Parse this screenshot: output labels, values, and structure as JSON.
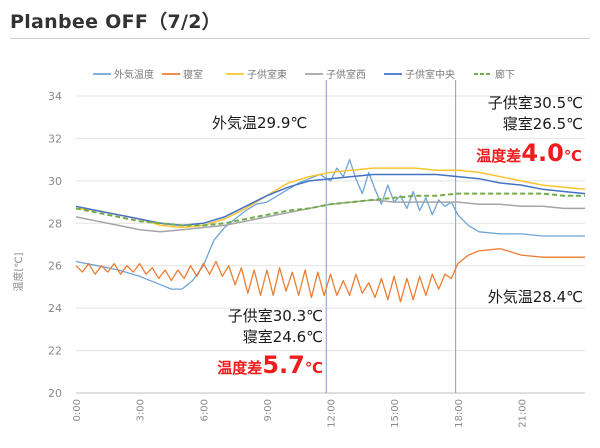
{
  "title": "Planbee OFF（7/2）",
  "chart_data": {
    "type": "line",
    "ylabel": "温度[℃]",
    "ylim": [
      20,
      34
    ],
    "yticks": [
      "20",
      "22",
      "24",
      "26",
      "28",
      "30",
      "32",
      "34"
    ],
    "xlim": [
      0,
      24
    ],
    "xticks": [
      {
        "v": 0,
        "label": "0:00"
      },
      {
        "v": 3,
        "label": "3:00"
      },
      {
        "v": 6,
        "label": "6:00"
      },
      {
        "v": 9,
        "label": "9:00"
      },
      {
        "v": 12,
        "label": "12:00"
      },
      {
        "v": 15,
        "label": "15:00"
      },
      {
        "v": 18,
        "label": "18:00"
      },
      {
        "v": 21,
        "label": "21:00"
      }
    ],
    "vlines": [
      11.8,
      17.9
    ],
    "legend_position": "top",
    "series": [
      {
        "name": "外気温度",
        "color": "#6ea4d8",
        "dash": false,
        "width": 1.3,
        "x": [
          0,
          1,
          2,
          3,
          4,
          4.5,
          5,
          5.5,
          6,
          6.5,
          7,
          7.5,
          8,
          8.5,
          9,
          9.5,
          10,
          10.5,
          11,
          11.5,
          12,
          12.3,
          12.6,
          12.9,
          13.2,
          13.5,
          13.8,
          14.1,
          14.4,
          14.7,
          15,
          15.3,
          15.6,
          15.9,
          16.2,
          16.5,
          16.8,
          17.1,
          17.4,
          17.7,
          18,
          18.5,
          19,
          20,
          21,
          22,
          23,
          24
        ],
        "y": [
          26.2,
          26.0,
          25.8,
          25.5,
          25.1,
          24.9,
          24.9,
          25.3,
          26.0,
          27.2,
          27.8,
          28.2,
          28.6,
          28.9,
          29.0,
          29.3,
          29.6,
          29.9,
          30.1,
          30.3,
          30.0,
          30.6,
          30.2,
          31.0,
          30.1,
          29.4,
          30.4,
          29.6,
          28.9,
          29.8,
          29.0,
          29.3,
          28.7,
          29.5,
          28.6,
          29.2,
          28.4,
          29.1,
          28.8,
          29.0,
          28.4,
          27.9,
          27.6,
          27.5,
          27.5,
          27.4,
          27.4,
          27.4
        ]
      },
      {
        "name": "寝室",
        "color": "#ec7d33",
        "dash": false,
        "width": 1.3,
        "x": [
          0,
          0.3,
          0.6,
          0.9,
          1.2,
          1.5,
          1.8,
          2.1,
          2.4,
          2.7,
          3.0,
          3.3,
          3.6,
          3.9,
          4.2,
          4.5,
          4.8,
          5.1,
          5.4,
          5.7,
          6.0,
          6.3,
          6.6,
          6.9,
          7.2,
          7.5,
          7.8,
          8.1,
          8.4,
          8.7,
          9.0,
          9.3,
          9.6,
          9.9,
          10.2,
          10.5,
          10.8,
          11.1,
          11.4,
          11.7,
          12.0,
          12.3,
          12.6,
          12.9,
          13.2,
          13.5,
          13.8,
          14.1,
          14.4,
          14.7,
          15.0,
          15.3,
          15.6,
          15.9,
          16.2,
          16.5,
          16.8,
          17.1,
          17.4,
          17.7,
          18.0,
          18.5,
          19,
          20,
          21,
          22,
          23,
          24
        ],
        "y": [
          26.0,
          25.7,
          26.1,
          25.6,
          26.0,
          25.7,
          26.1,
          25.6,
          26.0,
          25.7,
          26.1,
          25.6,
          25.9,
          25.4,
          25.8,
          25.3,
          25.8,
          25.4,
          26.0,
          25.5,
          26.1,
          25.6,
          26.2,
          25.5,
          26.0,
          25.1,
          25.9,
          24.7,
          25.8,
          24.6,
          25.8,
          24.6,
          25.9,
          24.8,
          25.7,
          24.6,
          25.8,
          24.5,
          25.7,
          24.6,
          25.6,
          24.6,
          25.3,
          24.6,
          25.6,
          24.7,
          25.2,
          24.5,
          25.4,
          24.4,
          25.5,
          24.3,
          25.4,
          24.4,
          25.5,
          24.6,
          25.6,
          24.9,
          25.6,
          25.4,
          26.1,
          26.5,
          26.7,
          26.8,
          26.5,
          26.4,
          26.4,
          26.4
        ]
      },
      {
        "name": "子供室東",
        "color": "#f9c430",
        "dash": false,
        "width": 1.5,
        "x": [
          0,
          1,
          2,
          3,
          4,
          5,
          6,
          7,
          8,
          9,
          10,
          11,
          12,
          13,
          14,
          15,
          16,
          17,
          18,
          19,
          20,
          21,
          22,
          23,
          24
        ],
        "y": [
          28.7,
          28.6,
          28.4,
          28.2,
          27.9,
          27.8,
          27.9,
          28.2,
          28.7,
          29.3,
          29.9,
          30.2,
          30.4,
          30.5,
          30.6,
          30.6,
          30.6,
          30.5,
          30.5,
          30.4,
          30.2,
          30.0,
          29.8,
          29.7,
          29.6
        ]
      },
      {
        "name": "子供室西",
        "color": "#a5a5a5",
        "dash": false,
        "width": 1.5,
        "x": [
          0,
          1,
          2,
          3,
          4,
          5,
          6,
          7,
          8,
          9,
          10,
          11,
          12,
          13,
          14,
          15,
          16,
          17,
          18,
          19,
          20,
          21,
          22,
          23,
          24
        ],
        "y": [
          28.3,
          28.1,
          27.9,
          27.7,
          27.6,
          27.7,
          27.8,
          27.9,
          28.1,
          28.3,
          28.5,
          28.7,
          28.9,
          29.0,
          29.1,
          29.0,
          29.0,
          29.0,
          29.0,
          28.9,
          28.9,
          28.8,
          28.8,
          28.7,
          28.7
        ]
      },
      {
        "name": "子供室中央",
        "color": "#4472c4",
        "dash": false,
        "width": 1.5,
        "x": [
          0,
          1,
          2,
          3,
          4,
          5,
          6,
          7,
          8,
          9,
          10,
          11,
          12,
          13,
          14,
          15,
          16,
          17,
          18,
          19,
          20,
          21,
          22,
          23,
          24
        ],
        "y": [
          28.8,
          28.6,
          28.4,
          28.2,
          28.0,
          27.9,
          28.0,
          28.3,
          28.8,
          29.3,
          29.7,
          30.0,
          30.1,
          30.2,
          30.3,
          30.3,
          30.3,
          30.3,
          30.2,
          30.1,
          29.9,
          29.8,
          29.6,
          29.5,
          29.4
        ]
      },
      {
        "name": "廊下",
        "color": "#70ad47",
        "dash": true,
        "width": 2.0,
        "x": [
          0,
          1,
          2,
          3,
          4,
          5,
          6,
          7,
          8,
          9,
          10,
          11,
          12,
          13,
          14,
          15,
          16,
          17,
          18,
          19,
          20,
          21,
          22,
          23,
          24
        ],
        "y": [
          28.7,
          28.5,
          28.3,
          28.1,
          28.0,
          27.9,
          27.9,
          28.0,
          28.2,
          28.4,
          28.6,
          28.7,
          28.9,
          29.0,
          29.1,
          29.2,
          29.3,
          29.3,
          29.4,
          29.4,
          29.4,
          29.4,
          29.4,
          29.3,
          29.3
        ]
      }
    ]
  },
  "annotations": {
    "noon_outdoor": "外気温29.9℃",
    "evening_kids": "子供室30.5℃",
    "evening_bed": "寝室26.5℃",
    "evening_diff_label": "温度差",
    "evening_diff_value": "4.0",
    "evening_diff_unit": "℃",
    "noon_kids": "子供室30.3℃",
    "noon_bed": "寝室24.6℃",
    "noon_diff_label": "温度差",
    "noon_diff_value": "5.7",
    "noon_diff_unit": "℃",
    "evening_outdoor": "外気温28.4℃"
  }
}
